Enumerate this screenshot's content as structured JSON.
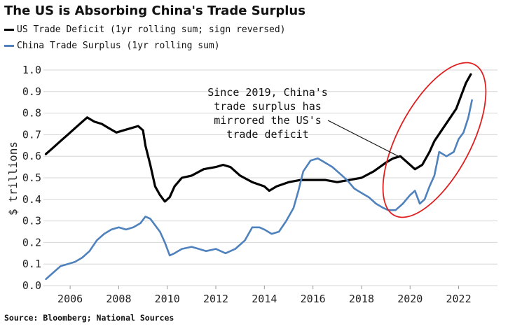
{
  "chart_data": {
    "type": "line",
    "title": "The US is Absorbing China's Trade Surplus",
    "xlabel": "",
    "ylabel": "$ trillions",
    "xlim": [
      2004.9,
      2023.6
    ],
    "ylim": [
      0.0,
      1.0
    ],
    "x_ticks": [
      "2006",
      "2008",
      "2010",
      "2012",
      "2014",
      "2016",
      "2018",
      "2020",
      "2022"
    ],
    "y_ticks": [
      "0.0",
      "0.1",
      "0.2",
      "0.3",
      "0.4",
      "0.5",
      "0.6",
      "0.7",
      "0.8",
      "0.9",
      "1.0"
    ],
    "grid": "horizontal",
    "legend_position": "top-left",
    "series": [
      {
        "name": "US Trade Deficit (1yr rolling sum; sign reversed)",
        "color": "#000000",
        "x": [
          2005.0,
          2005.3,
          2005.6,
          2005.9,
          2006.2,
          2006.5,
          2006.7,
          2007.0,
          2007.3,
          2007.6,
          2007.9,
          2008.2,
          2008.5,
          2008.8,
          2009.0,
          2009.1,
          2009.3,
          2009.5,
          2009.7,
          2009.9,
          2010.1,
          2010.3,
          2010.6,
          2011.0,
          2011.5,
          2012.0,
          2012.3,
          2012.6,
          2013.0,
          2013.5,
          2014.0,
          2014.2,
          2014.5,
          2015.0,
          2015.5,
          2016.0,
          2016.5,
          2017.0,
          2017.5,
          2018.0,
          2018.5,
          2019.0,
          2019.3,
          2019.6,
          2019.9,
          2020.2,
          2020.5,
          2020.8,
          2021.0,
          2021.3,
          2021.6,
          2021.9,
          2022.1,
          2022.3,
          2022.5
        ],
        "values": [
          0.61,
          0.64,
          0.67,
          0.7,
          0.73,
          0.76,
          0.78,
          0.76,
          0.75,
          0.73,
          0.71,
          0.72,
          0.73,
          0.74,
          0.72,
          0.65,
          0.56,
          0.46,
          0.42,
          0.39,
          0.41,
          0.46,
          0.5,
          0.51,
          0.54,
          0.55,
          0.56,
          0.55,
          0.51,
          0.48,
          0.46,
          0.44,
          0.46,
          0.48,
          0.49,
          0.49,
          0.49,
          0.48,
          0.49,
          0.5,
          0.53,
          0.57,
          0.59,
          0.6,
          0.57,
          0.54,
          0.56,
          0.62,
          0.67,
          0.72,
          0.77,
          0.82,
          0.88,
          0.94,
          0.98
        ]
      },
      {
        "name": "China Trade Surplus (1yr rolling sum)",
        "color": "#4f81bd",
        "x": [
          2005.0,
          2005.3,
          2005.6,
          2005.9,
          2006.2,
          2006.5,
          2006.8,
          2007.1,
          2007.4,
          2007.7,
          2008.0,
          2008.3,
          2008.6,
          2008.9,
          2009.1,
          2009.3,
          2009.5,
          2009.7,
          2009.9,
          2010.1,
          2010.3,
          2010.6,
          2011.0,
          2011.3,
          2011.6,
          2012.0,
          2012.4,
          2012.8,
          2013.2,
          2013.5,
          2013.8,
          2014.0,
          2014.3,
          2014.6,
          2014.9,
          2015.2,
          2015.4,
          2015.6,
          2015.9,
          2016.2,
          2016.5,
          2016.8,
          2017.1,
          2017.4,
          2017.7,
          2018.0,
          2018.3,
          2018.6,
          2018.9,
          2019.1,
          2019.4,
          2019.7,
          2020.0,
          2020.2,
          2020.4,
          2020.6,
          2020.8,
          2021.0,
          2021.2,
          2021.5,
          2021.8,
          2022.0,
          2022.2,
          2022.4,
          2022.55
        ],
        "values": [
          0.03,
          0.06,
          0.09,
          0.1,
          0.11,
          0.13,
          0.16,
          0.21,
          0.24,
          0.26,
          0.27,
          0.26,
          0.27,
          0.29,
          0.32,
          0.31,
          0.28,
          0.25,
          0.2,
          0.14,
          0.15,
          0.17,
          0.18,
          0.17,
          0.16,
          0.17,
          0.15,
          0.17,
          0.21,
          0.27,
          0.27,
          0.26,
          0.24,
          0.25,
          0.3,
          0.36,
          0.44,
          0.53,
          0.58,
          0.59,
          0.57,
          0.55,
          0.52,
          0.49,
          0.45,
          0.43,
          0.41,
          0.38,
          0.36,
          0.35,
          0.35,
          0.38,
          0.42,
          0.44,
          0.38,
          0.4,
          0.46,
          0.51,
          0.62,
          0.6,
          0.62,
          0.68,
          0.71,
          0.78,
          0.86
        ]
      }
    ],
    "annotation": {
      "lines": [
        "Since 2019, China's",
        "trade surplus has",
        "mirrored the US's",
        "trade deficit"
      ]
    },
    "source": "Source: Bloomberg; National Sources"
  }
}
